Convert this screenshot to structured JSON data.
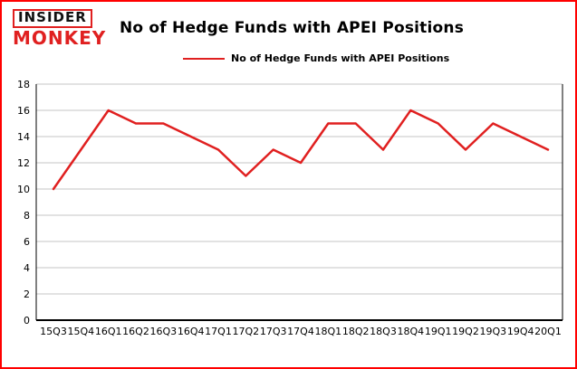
{
  "logo": {
    "line1": "INSIDER",
    "line2": "MONKEY"
  },
  "title": "No of Hedge Funds with APEI Positions",
  "legend": "No of Hedge Funds with APEI Positions",
  "colors": {
    "frame_border": "#ff0000",
    "line": "#e02020",
    "grid": "#c6c6c6",
    "axis": "#000000",
    "text": "#000000",
    "logo_red": "#e02020"
  },
  "chart_data": {
    "type": "line",
    "title": "No of Hedge Funds with APEI Positions",
    "categories": [
      "15Q3",
      "15Q4",
      "16Q1",
      "16Q2",
      "16Q3",
      "16Q4",
      "17Q1",
      "17Q2",
      "17Q3",
      "17Q4",
      "18Q1",
      "18Q2",
      "18Q3",
      "18Q4",
      "19Q1",
      "19Q2",
      "19Q3",
      "19Q4",
      "20Q1"
    ],
    "values": [
      10,
      13,
      16,
      15,
      15,
      14,
      13,
      11,
      13,
      12,
      15,
      15,
      13,
      16,
      15,
      13,
      15,
      14,
      13
    ],
    "xlabel": "",
    "ylabel": "",
    "ylim": [
      0,
      18
    ],
    "yticks": [
      0,
      2,
      4,
      6,
      8,
      10,
      12,
      14,
      16,
      18
    ],
    "grid": true,
    "legend_position": "top",
    "series_name": "No of Hedge Funds with APEI Positions"
  }
}
